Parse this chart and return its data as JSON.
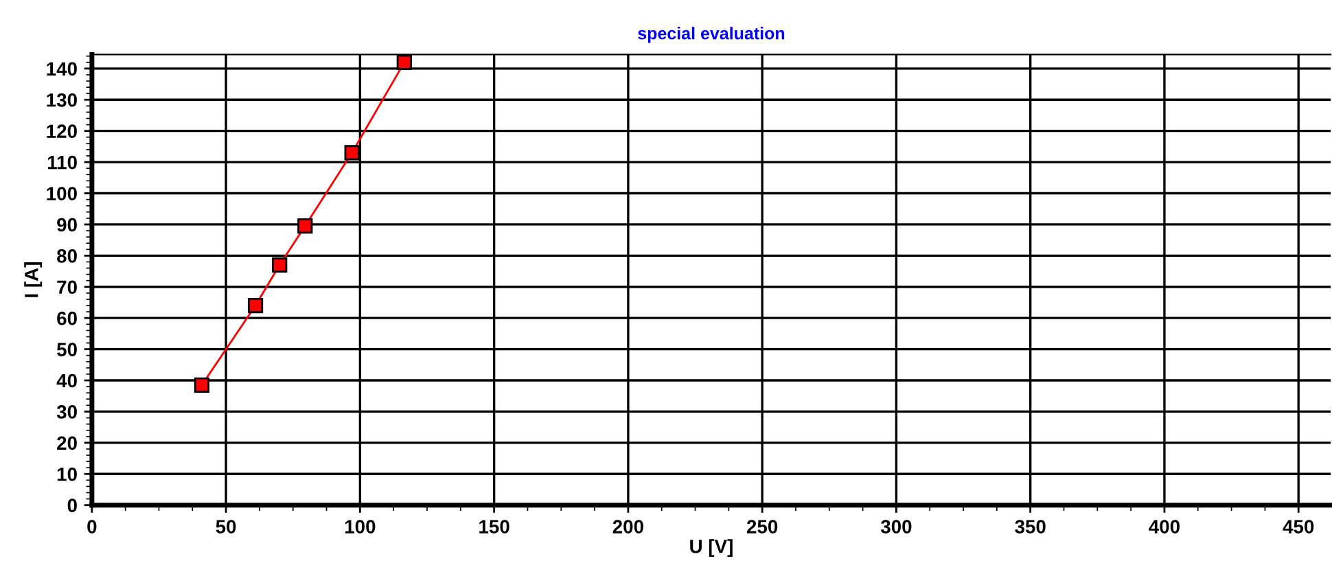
{
  "chart_data": {
    "type": "line",
    "title": "special evaluation",
    "xlabel": "U [V]",
    "ylabel": "I [A]",
    "x": [
      41,
      61,
      70,
      79.5,
      97,
      116.5
    ],
    "series": [
      {
        "color": "#ff0000",
        "values": [
          38.5,
          64,
          77,
          89.5,
          113,
          142
        ]
      }
    ],
    "marker": "square",
    "line_style": "solid",
    "grid": true,
    "legend": false,
    "xlim": [
      0,
      462
    ],
    "ylim": [
      0,
      144.5
    ],
    "xticks": [
      0,
      50,
      100,
      150,
      200,
      250,
      300,
      350,
      400,
      450
    ],
    "yticks": [
      0,
      10,
      20,
      30,
      40,
      50,
      60,
      70,
      80,
      90,
      100,
      110,
      120,
      130,
      140
    ]
  }
}
